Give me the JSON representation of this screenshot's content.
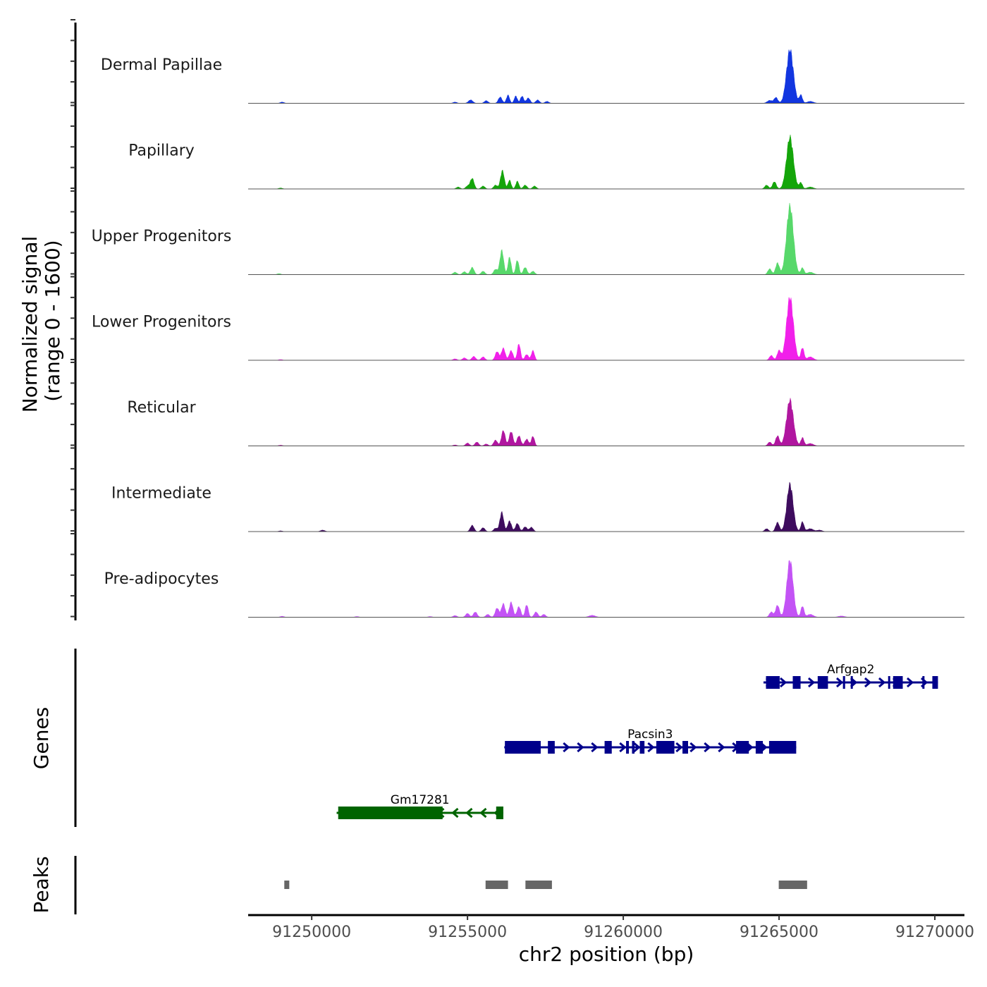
{
  "chart_data": {
    "type": "area",
    "title": "",
    "xlabel": "chr2 position (bp)",
    "ylabel_line1": "Normalized signal",
    "ylabel_line2": "(range 0 - 1600)",
    "xlim": [
      91247960,
      91270950
    ],
    "ylim": [
      0,
      1600
    ],
    "x_ticks": [
      91250000,
      91255000,
      91260000,
      91265000,
      91270000
    ],
    "x_tick_labels": [
      "91250000",
      "91255000",
      "91260000",
      "91265000",
      "91270000"
    ],
    "tracks": [
      {
        "name": "Dermal Papillae",
        "color": "#1236E0",
        "bumps": [
          [
            91249050,
            25,
            60
          ],
          [
            91254600,
            25,
            60
          ],
          [
            91255100,
            70,
            70
          ],
          [
            91255600,
            55,
            60
          ],
          [
            91256050,
            130,
            60
          ],
          [
            91256300,
            170,
            50
          ],
          [
            91256550,
            150,
            50
          ],
          [
            91256750,
            150,
            50
          ],
          [
            91256950,
            110,
            60
          ],
          [
            91257250,
            70,
            60
          ],
          [
            91257550,
            40,
            60
          ],
          [
            91264700,
            60,
            80
          ],
          [
            91264900,
            120,
            60
          ],
          [
            91265350,
            1110,
            110
          ],
          [
            91265700,
            170,
            50
          ],
          [
            91266000,
            40,
            100
          ]
        ]
      },
      {
        "name": "Papillary",
        "color": "#14A50A",
        "bumps": [
          [
            91249000,
            20,
            60
          ],
          [
            91254700,
            40,
            60
          ],
          [
            91255000,
            60,
            60
          ],
          [
            91255150,
            220,
            60
          ],
          [
            91255500,
            60,
            60
          ],
          [
            91255900,
            80,
            60
          ],
          [
            91256120,
            380,
            60
          ],
          [
            91256350,
            180,
            50
          ],
          [
            91256600,
            160,
            50
          ],
          [
            91256850,
            80,
            60
          ],
          [
            91257150,
            60,
            60
          ],
          [
            91264600,
            80,
            60
          ],
          [
            91264850,
            150,
            60
          ],
          [
            91265350,
            1070,
            110
          ],
          [
            91265700,
            130,
            50
          ],
          [
            91266000,
            40,
            100
          ]
        ]
      },
      {
        "name": "Upper Progenitors",
        "color": "#57D86A",
        "bumps": [
          [
            91248950,
            20,
            60
          ],
          [
            91254600,
            50,
            60
          ],
          [
            91254900,
            60,
            60
          ],
          [
            91255150,
            150,
            60
          ],
          [
            91255500,
            70,
            60
          ],
          [
            91255900,
            110,
            60
          ],
          [
            91256100,
            500,
            60
          ],
          [
            91256350,
            360,
            50
          ],
          [
            91256600,
            300,
            50
          ],
          [
            91256850,
            150,
            60
          ],
          [
            91257100,
            70,
            60
          ],
          [
            91264700,
            120,
            60
          ],
          [
            91264950,
            240,
            60
          ],
          [
            91265350,
            1415,
            110
          ],
          [
            91265750,
            140,
            50
          ],
          [
            91266000,
            50,
            100
          ]
        ]
      },
      {
        "name": "Lower Progenitors",
        "color": "#F120EA",
        "bumps": [
          [
            91249000,
            15,
            60
          ],
          [
            91254600,
            30,
            60
          ],
          [
            91254900,
            50,
            60
          ],
          [
            91255200,
            80,
            60
          ],
          [
            91255500,
            70,
            60
          ],
          [
            91255950,
            180,
            60
          ],
          [
            91256150,
            250,
            60
          ],
          [
            91256400,
            200,
            60
          ],
          [
            91256650,
            340,
            50
          ],
          [
            91256900,
            120,
            60
          ],
          [
            91257100,
            200,
            50
          ],
          [
            91264750,
            100,
            60
          ],
          [
            91265000,
            200,
            60
          ],
          [
            91265350,
            1300,
            110
          ],
          [
            91265750,
            260,
            50
          ],
          [
            91266000,
            70,
            100
          ]
        ]
      },
      {
        "name": "Reticular",
        "color": "#B0169F",
        "bumps": [
          [
            91249000,
            15,
            60
          ],
          [
            91254600,
            20,
            60
          ],
          [
            91255000,
            60,
            60
          ],
          [
            91255300,
            80,
            60
          ],
          [
            91255600,
            40,
            60
          ],
          [
            91255900,
            120,
            60
          ],
          [
            91256150,
            320,
            60
          ],
          [
            91256400,
            300,
            60
          ],
          [
            91256650,
            210,
            60
          ],
          [
            91256900,
            140,
            60
          ],
          [
            91257100,
            200,
            50
          ],
          [
            91264700,
            80,
            60
          ],
          [
            91264950,
            210,
            60
          ],
          [
            91265350,
            950,
            110
          ],
          [
            91265750,
            170,
            50
          ],
          [
            91266000,
            50,
            100
          ]
        ]
      },
      {
        "name": "Intermediate",
        "color": "#3E0C5E",
        "bumps": [
          [
            91249000,
            15,
            60
          ],
          [
            91250350,
            30,
            70
          ],
          [
            91255150,
            130,
            60
          ],
          [
            91255500,
            80,
            60
          ],
          [
            91255900,
            70,
            60
          ],
          [
            91256100,
            400,
            60
          ],
          [
            91256350,
            220,
            60
          ],
          [
            91256600,
            170,
            60
          ],
          [
            91256850,
            100,
            60
          ],
          [
            91257050,
            90,
            60
          ],
          [
            91264600,
            60,
            60
          ],
          [
            91264950,
            190,
            60
          ],
          [
            91265350,
            980,
            100
          ],
          [
            91265750,
            200,
            50
          ],
          [
            91266000,
            60,
            100
          ],
          [
            91266300,
            30,
            80
          ]
        ]
      },
      {
        "name": "Pre-adipocytes",
        "color": "#C353F5",
        "bumps": [
          [
            91249050,
            20,
            60
          ],
          [
            91251450,
            15,
            60
          ],
          [
            91253800,
            15,
            60
          ],
          [
            91254600,
            35,
            60
          ],
          [
            91255000,
            80,
            60
          ],
          [
            91255250,
            110,
            60
          ],
          [
            91255650,
            60,
            60
          ],
          [
            91255950,
            190,
            60
          ],
          [
            91256150,
            280,
            60
          ],
          [
            91256400,
            310,
            60
          ],
          [
            91256650,
            220,
            60
          ],
          [
            91256900,
            260,
            50
          ],
          [
            91257200,
            110,
            60
          ],
          [
            91257450,
            60,
            60
          ],
          [
            91259000,
            40,
            100
          ],
          [
            91264750,
            110,
            60
          ],
          [
            91264950,
            250,
            60
          ],
          [
            91265350,
            1180,
            100
          ],
          [
            91265750,
            230,
            50
          ],
          [
            91266000,
            60,
            100
          ],
          [
            91267000,
            25,
            100
          ]
        ]
      }
    ],
    "genes": [
      {
        "name": "Arfgap2",
        "color": "#00008B",
        "strand": "+",
        "start": 91264500,
        "end": 91269300,
        "exons": [
          [
            91264580,
            91265020
          ],
          [
            91265440,
            91265690
          ],
          [
            91266240,
            91266570
          ],
          [
            91267050,
            91267120
          ],
          [
            91267300,
            91267360
          ],
          [
            91268500,
            91268560
          ],
          [
            91268660,
            91268970
          ],
          [
            91269600,
            91269650
          ],
          [
            91269920,
            91270100
          ]
        ]
      },
      {
        "name": "Pacsin3",
        "color": "#00008B",
        "strand": "+",
        "start": 91256180,
        "end": 91264980,
        "exons": [
          [
            91256200,
            91257350
          ],
          [
            91257580,
            91257800
          ],
          [
            91259400,
            91259630
          ],
          [
            91260090,
            91260180
          ],
          [
            91260280,
            91260360
          ],
          [
            91260530,
            91260680
          ],
          [
            91261060,
            91261640
          ],
          [
            91261900,
            91262080
          ],
          [
            91263620,
            91264030
          ],
          [
            91264250,
            91264480
          ],
          [
            91264680,
            91265550
          ]
        ]
      },
      {
        "name": "Gm17281",
        "color": "#006400",
        "strand": "-",
        "start": 91250800,
        "end": 91256150,
        "exons": [
          [
            91250850,
            91254200
          ],
          [
            91255920,
            91256150
          ]
        ]
      }
    ],
    "peaks": [
      [
        91249120,
        91249280
      ],
      [
        91255580,
        91256300
      ],
      [
        91256860,
        91257710
      ],
      [
        91264990,
        91265900
      ]
    ]
  },
  "panels": {
    "genes_label": "Genes",
    "peaks_label": "Peaks"
  }
}
